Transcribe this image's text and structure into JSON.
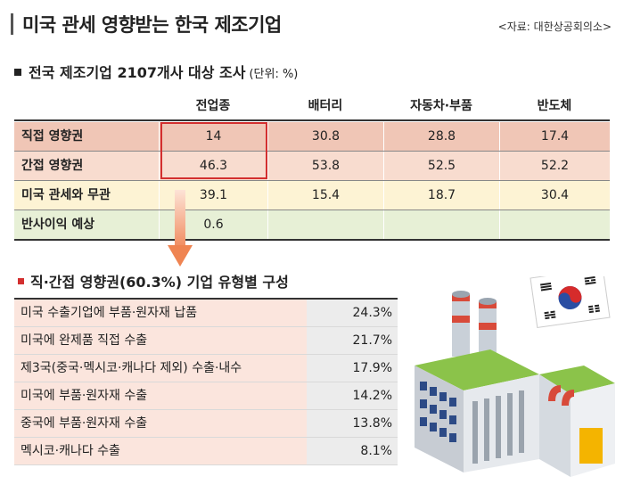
{
  "header": {
    "title": "미국 관세 영향받는 한국 제조기업",
    "source": "<자료: 대한상공회의소>"
  },
  "survey": {
    "title": "전국 제조기업 2107개사 대상 조사",
    "unit": "(단위: %)",
    "columns": [
      "전업종",
      "배터리",
      "자동차·부품",
      "반도체"
    ],
    "rows": [
      {
        "label": "직접 영향권",
        "values": [
          "14",
          "30.8",
          "28.8",
          "17.4"
        ],
        "color": "#f0c6b6"
      },
      {
        "label": "간접 영향권",
        "values": [
          "46.3",
          "53.8",
          "52.5",
          "52.2"
        ],
        "color": "#f8dccf"
      },
      {
        "label": "미국 관세와 무관",
        "values": [
          "39.1",
          "15.4",
          "18.7",
          "30.4"
        ],
        "color": "#fdf3d4"
      },
      {
        "label": "반사이익 예상",
        "values": [
          "0.6",
          "",
          "",
          ""
        ],
        "color": "#e7f0d6"
      }
    ]
  },
  "breakdown": {
    "title": "직·간접 영향권(60.3%) 기업 유형별 구성",
    "items": [
      {
        "label": "미국 수출기업에 부품·원자재 납품",
        "value": "24.3%"
      },
      {
        "label": "미국에 완제품 직접 수출",
        "value": "21.7%"
      },
      {
        "label": "제3국(중국·멕시코·캐나다 제외) 수출·내수",
        "value": "17.9%"
      },
      {
        "label": "미국에 부품·원자재 수출",
        "value": "14.2%"
      },
      {
        "label": "중국에 부품·원자재 수출",
        "value": "13.8%"
      },
      {
        "label": "멕시코·캐나다 수출",
        "value": "8.1%"
      }
    ]
  },
  "colors": {
    "accent_red": "#d32f2f",
    "arrow_orange": "#f2a27a"
  },
  "icons": [
    "korea-flag-icon",
    "factory-illustration",
    "down-arrow-icon"
  ]
}
